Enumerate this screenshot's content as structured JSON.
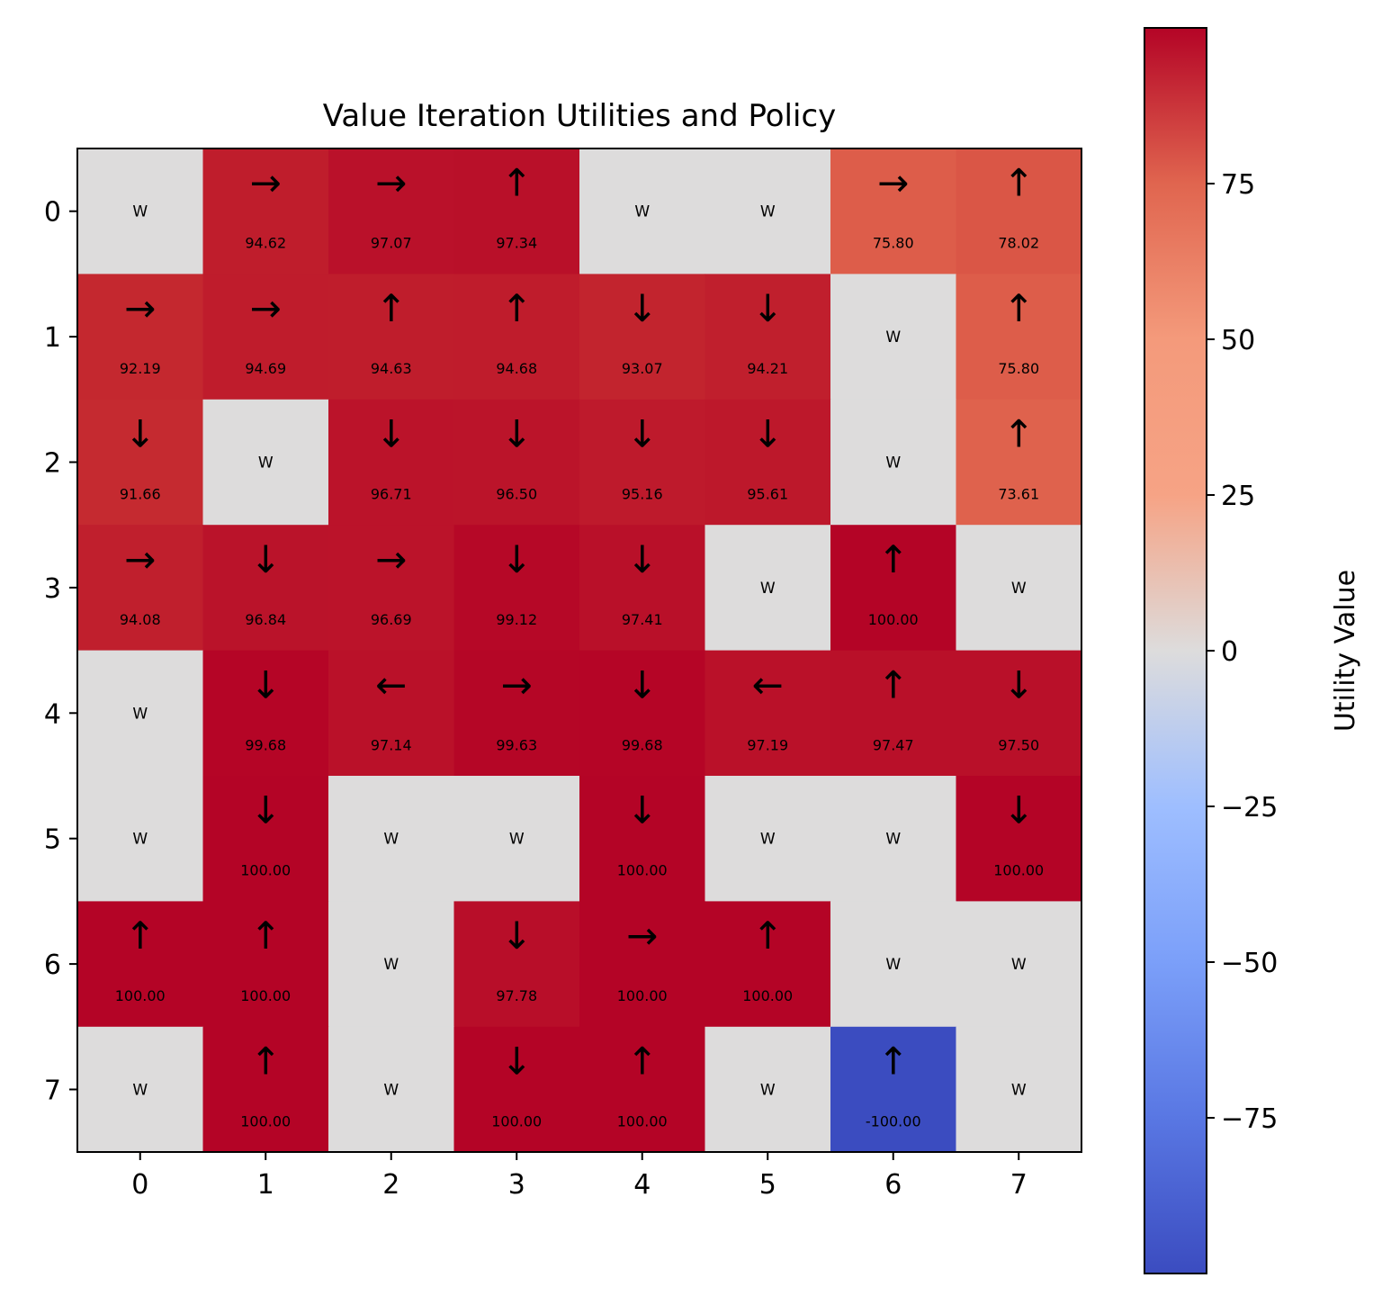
{
  "chart_data": {
    "type": "heatmap",
    "title": "Value Iteration Utilities and Policy",
    "x_ticks": [
      "0",
      "1",
      "2",
      "3",
      "4",
      "5",
      "6",
      "7"
    ],
    "y_ticks": [
      "0",
      "1",
      "2",
      "3",
      "4",
      "5",
      "6",
      "7"
    ],
    "wall_label": "W",
    "grid": [
      [
        {
          "w": true
        },
        {
          "v": 94.62,
          "a": "right"
        },
        {
          "v": 97.07,
          "a": "right"
        },
        {
          "v": 97.34,
          "a": "up"
        },
        {
          "w": true
        },
        {
          "w": true
        },
        {
          "v": 75.8,
          "a": "right"
        },
        {
          "v": 78.02,
          "a": "up"
        }
      ],
      [
        {
          "v": 92.19,
          "a": "right"
        },
        {
          "v": 94.69,
          "a": "right"
        },
        {
          "v": 94.63,
          "a": "up"
        },
        {
          "v": 94.68,
          "a": "up"
        },
        {
          "v": 93.07,
          "a": "down"
        },
        {
          "v": 94.21,
          "a": "down"
        },
        {
          "w": true
        },
        {
          "v": 75.8,
          "a": "up"
        }
      ],
      [
        {
          "v": 91.66,
          "a": "down"
        },
        {
          "w": true
        },
        {
          "v": 96.71,
          "a": "down"
        },
        {
          "v": 96.5,
          "a": "down"
        },
        {
          "v": 95.16,
          "a": "down"
        },
        {
          "v": 95.61,
          "a": "down"
        },
        {
          "w": true
        },
        {
          "v": 73.61,
          "a": "up"
        }
      ],
      [
        {
          "v": 94.08,
          "a": "right"
        },
        {
          "v": 96.84,
          "a": "down"
        },
        {
          "v": 96.69,
          "a": "right"
        },
        {
          "v": 99.12,
          "a": "down"
        },
        {
          "v": 97.41,
          "a": "down"
        },
        {
          "w": true
        },
        {
          "v": 100.0,
          "a": "up"
        },
        {
          "w": true
        }
      ],
      [
        {
          "w": true
        },
        {
          "v": 99.68,
          "a": "down"
        },
        {
          "v": 97.14,
          "a": "left"
        },
        {
          "v": 99.63,
          "a": "right"
        },
        {
          "v": 99.68,
          "a": "down"
        },
        {
          "v": 97.19,
          "a": "left"
        },
        {
          "v": 97.47,
          "a": "up"
        },
        {
          "v": 97.5,
          "a": "down"
        }
      ],
      [
        {
          "w": true
        },
        {
          "v": 100.0,
          "a": "down"
        },
        {
          "w": true
        },
        {
          "w": true
        },
        {
          "v": 100.0,
          "a": "down"
        },
        {
          "w": true
        },
        {
          "w": true
        },
        {
          "v": 100.0,
          "a": "down"
        }
      ],
      [
        {
          "v": 100.0,
          "a": "up"
        },
        {
          "v": 100.0,
          "a": "up"
        },
        {
          "w": true
        },
        {
          "v": 97.78,
          "a": "down"
        },
        {
          "v": 100.0,
          "a": "right"
        },
        {
          "v": 100.0,
          "a": "up"
        },
        {
          "w": true
        },
        {
          "w": true
        }
      ],
      [
        {
          "w": true
        },
        {
          "v": 100.0,
          "a": "up"
        },
        {
          "w": true
        },
        {
          "v": 100.0,
          "a": "down"
        },
        {
          "v": 100.0,
          "a": "up"
        },
        {
          "w": true
        },
        {
          "v": -100.0,
          "a": "up"
        },
        {
          "w": true
        }
      ]
    ],
    "colorbar": {
      "label": "Utility Value",
      "range": [
        -100,
        100
      ],
      "ticks": [
        -75,
        -50,
        -25,
        0,
        25,
        50,
        75
      ],
      "colormap": "coolwarm"
    }
  }
}
